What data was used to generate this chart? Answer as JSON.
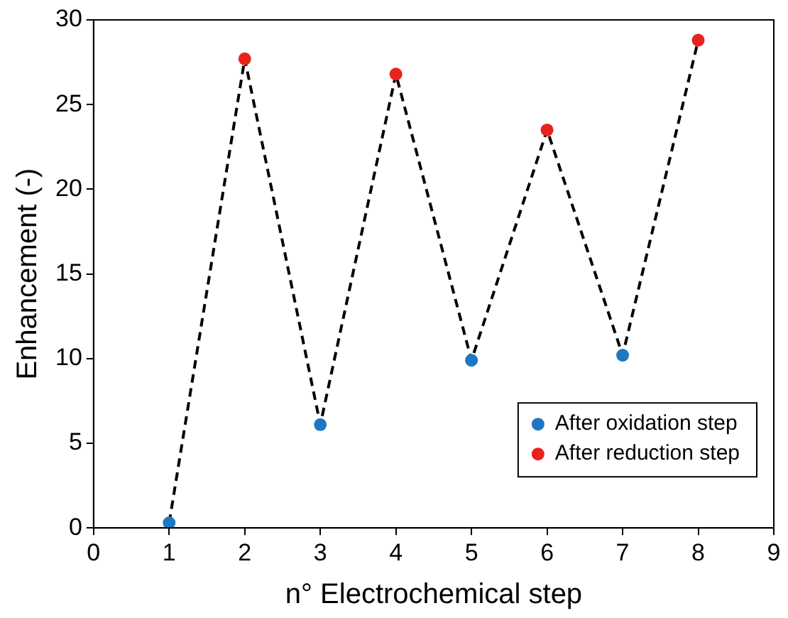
{
  "chart_data": {
    "type": "scatter",
    "xlabel": "n° Electrochemical step",
    "ylabel": "Enhancement (-)",
    "xlim": [
      0,
      9
    ],
    "xticks": [
      0,
      1,
      2,
      3,
      4,
      5,
      6,
      7,
      8,
      9
    ],
    "ylim": [
      0,
      30
    ],
    "yticks": [
      0,
      5,
      10,
      15,
      20,
      25,
      30
    ],
    "grid": false,
    "legend": "bottom right",
    "series": [
      {
        "type": "line",
        "color": "#000000",
        "line_style": "dashed",
        "marker": "none",
        "x": [
          1,
          2,
          3,
          4,
          5,
          6,
          7,
          8
        ],
        "values": [
          0.3,
          27.7,
          6.1,
          26.8,
          9.9,
          23.5,
          10.2,
          28.8
        ]
      },
      {
        "name": "After oxidation step",
        "marker": "circle",
        "color": "#1f77c4",
        "x": [
          1,
          3,
          5,
          7
        ],
        "values": [
          0.3,
          6.1,
          9.9,
          10.2
        ]
      },
      {
        "name": "After reduction step",
        "marker": "circle",
        "color": "#e8231c",
        "x": [
          2,
          4,
          6,
          8
        ],
        "values": [
          27.7,
          26.8,
          23.5,
          28.8
        ]
      }
    ]
  }
}
